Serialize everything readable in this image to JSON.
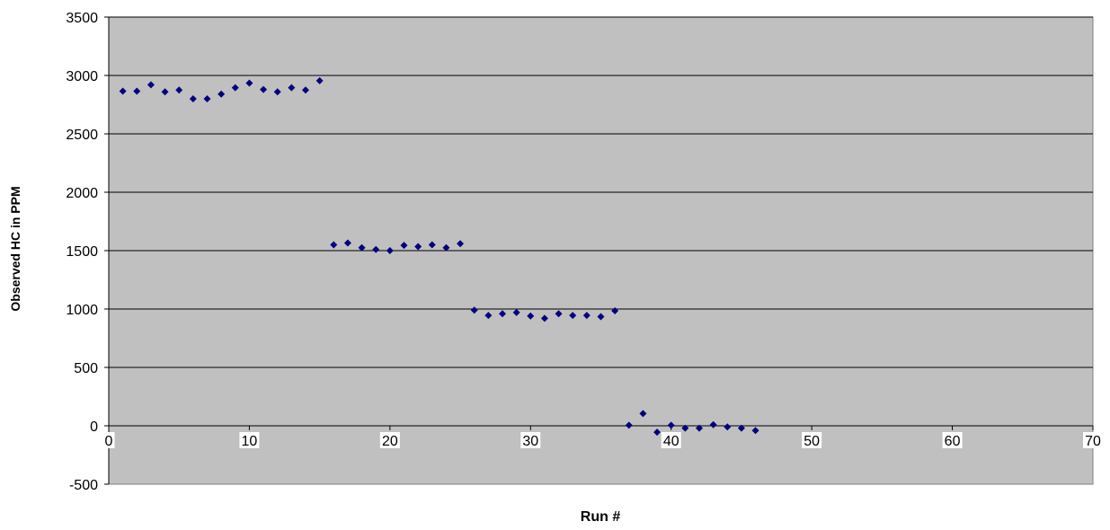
{
  "chart_data": {
    "type": "scatter",
    "title": "",
    "xlabel": "Run #",
    "ylabel": "Observed HC in PPM",
    "xlim": [
      0,
      70
    ],
    "ylim": [
      -500,
      3500
    ],
    "x_ticks": [
      0,
      10,
      20,
      30,
      40,
      50,
      60,
      70
    ],
    "y_ticks": [
      -500,
      0,
      500,
      1000,
      1500,
      2000,
      2500,
      3000,
      3500
    ],
    "grid": "horizontal major gridlines",
    "legend": "none",
    "colors": {
      "plot_background": "#c0c0c0",
      "marker": "#000080",
      "gridline": "#000000"
    },
    "series": [
      {
        "marker": "diamond",
        "points": [
          {
            "x": 1,
            "y": 2865
          },
          {
            "x": 2,
            "y": 2865
          },
          {
            "x": 3,
            "y": 2920
          },
          {
            "x": 4,
            "y": 2860
          },
          {
            "x": 5,
            "y": 2875
          },
          {
            "x": 6,
            "y": 2800
          },
          {
            "x": 7,
            "y": 2800
          },
          {
            "x": 8,
            "y": 2840
          },
          {
            "x": 9,
            "y": 2895
          },
          {
            "x": 10,
            "y": 2935
          },
          {
            "x": 11,
            "y": 2880
          },
          {
            "x": 12,
            "y": 2860
          },
          {
            "x": 13,
            "y": 2895
          },
          {
            "x": 14,
            "y": 2875
          },
          {
            "x": 15,
            "y": 2955
          },
          {
            "x": 16,
            "y": 1550
          },
          {
            "x": 17,
            "y": 1565
          },
          {
            "x": 18,
            "y": 1525
          },
          {
            "x": 19,
            "y": 1510
          },
          {
            "x": 20,
            "y": 1500
          },
          {
            "x": 21,
            "y": 1545
          },
          {
            "x": 22,
            "y": 1535
          },
          {
            "x": 23,
            "y": 1550
          },
          {
            "x": 24,
            "y": 1525
          },
          {
            "x": 25,
            "y": 1560
          },
          {
            "x": 26,
            "y": 990
          },
          {
            "x": 27,
            "y": 945
          },
          {
            "x": 28,
            "y": 960
          },
          {
            "x": 29,
            "y": 970
          },
          {
            "x": 30,
            "y": 940
          },
          {
            "x": 31,
            "y": 920
          },
          {
            "x": 32,
            "y": 960
          },
          {
            "x": 33,
            "y": 945
          },
          {
            "x": 34,
            "y": 945
          },
          {
            "x": 35,
            "y": 935
          },
          {
            "x": 36,
            "y": 985
          },
          {
            "x": 37,
            "y": 5
          },
          {
            "x": 38,
            "y": 105
          },
          {
            "x": 39,
            "y": -55
          },
          {
            "x": 40,
            "y": 5
          },
          {
            "x": 41,
            "y": -20
          },
          {
            "x": 42,
            "y": -20
          },
          {
            "x": 43,
            "y": 10
          },
          {
            "x": 44,
            "y": -10
          },
          {
            "x": 45,
            "y": -20
          },
          {
            "x": 46,
            "y": -40
          }
        ]
      }
    ]
  }
}
